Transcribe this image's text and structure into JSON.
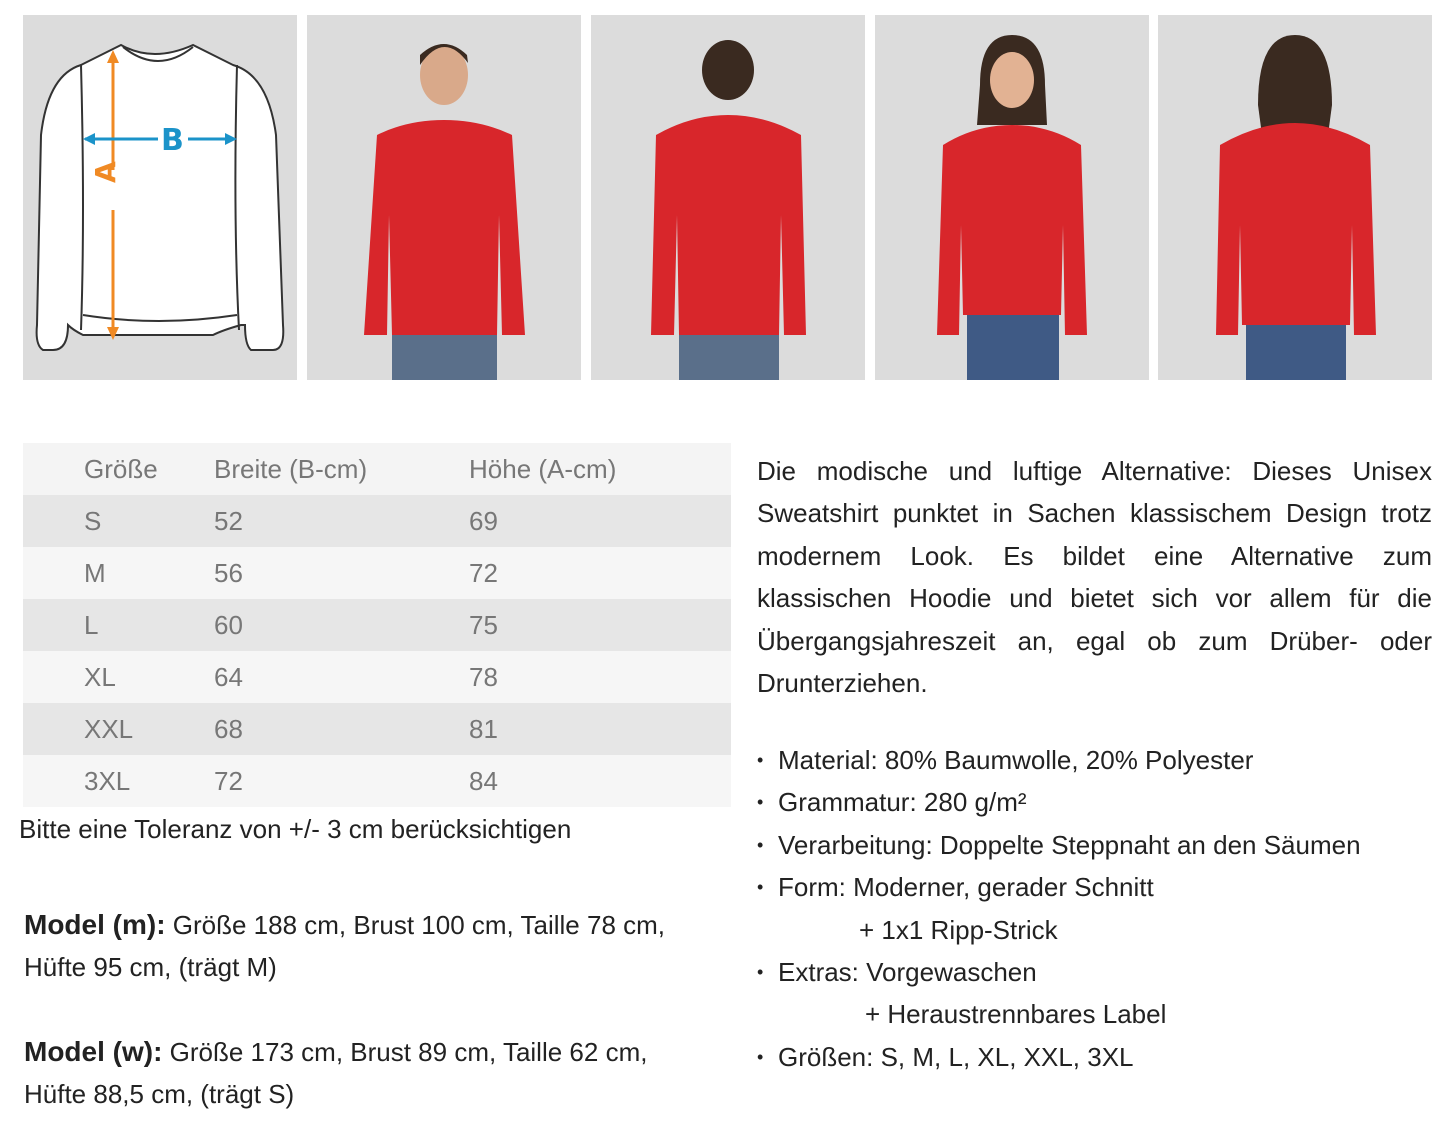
{
  "diagram": {
    "label_a": "A",
    "label_b": "B",
    "color_a": "#f08a24",
    "color_b": "#1b93c9"
  },
  "photos": [
    {
      "subject": "male model front",
      "garment_color": "#d8262b"
    },
    {
      "subject": "male model back",
      "garment_color": "#d8262b"
    },
    {
      "subject": "female model front",
      "garment_color": "#d8262b"
    },
    {
      "subject": "female model back",
      "garment_color": "#d8262b"
    }
  ],
  "size_table": {
    "headers": [
      "Größe",
      "Breite (B-cm)",
      "Höhe (A-cm)"
    ],
    "rows": [
      [
        "S",
        "52",
        "69"
      ],
      [
        "M",
        "56",
        "72"
      ],
      [
        "L",
        "60",
        "75"
      ],
      [
        "XL",
        "64",
        "78"
      ],
      [
        "XXL",
        "68",
        "81"
      ],
      [
        "3XL",
        "72",
        "84"
      ]
    ]
  },
  "tolerance": "Bitte eine Toleranz von +/- 3 cm berücksichtigen",
  "model_m": {
    "label": "Model (m):",
    "text1": " Größe 188 cm, Brust 100 cm, Taille 78 cm,",
    "text2": "Hüfte 95 cm, (trägt M)"
  },
  "model_w": {
    "label": "Model (w):",
    "text1": " Größe 173 cm, Brust 89 cm, Taille 62 cm,",
    "text2": "Hüfte 88,5 cm, (trägt S)"
  },
  "description": "Die modische und luftige Alternative: Dieses Unisex Sweatshirt punktet in Sachen klassischem Design trotz modernem Look. Es bildet eine Alternative zum klassischen Hoodie und bietet sich vor allem für die Übergangsjahreszeit an, egal ob zum Drüber- oder Drunterziehen.",
  "features": [
    "Material: 80% Baumwolle, 20% Polyester",
    "Grammatur: 280 g/m²",
    "Verarbeitung: Doppelte Steppnaht an den Säumen",
    "Form: Moderner, gerader Schnitt",
    "+ 1x1 Ripp-Strick",
    "Extras: Vorgewaschen",
    "+ Heraustrennbares Label",
    "Größen:  S, M, L, XL, XXL, 3XL"
  ]
}
